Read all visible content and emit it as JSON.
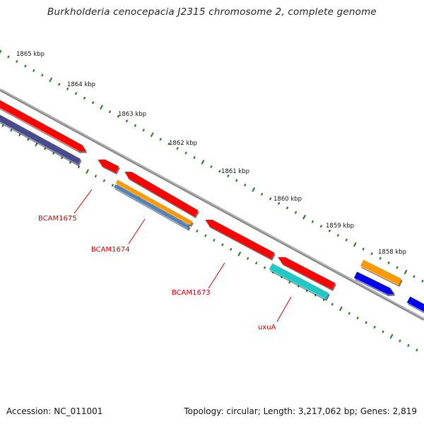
{
  "title": "Burkholderia cenocepacia J2315 chromosome 2, complete genome",
  "footer": {
    "accession": "Accession: NC_011001",
    "summary": "Topology: circular; Length: 3,217,062 bp; Genes: 2,819"
  },
  "colors": {
    "backbone": "#8a8a8a",
    "cds": "#ff0000",
    "gene_navy": "#4a4a8f",
    "gene_orange": "#ff9900",
    "gene_steelblue": "#4f81bd",
    "gene_cyan": "#21c8c8",
    "gene_blue": "#0000ee",
    "tick": "#1f7a1f",
    "label": "#d40000"
  },
  "scale_labels": [
    "1865 kbp",
    "1864 kbp",
    "1863 kbp",
    "1862 kbp",
    "1861 kbp",
    "1860 kbp",
    "1859 kbp",
    "1858 kbp"
  ],
  "gene_labels": [
    "BCAM1675",
    "BCAM1674",
    "BCAM1673",
    "uxuA"
  ]
}
